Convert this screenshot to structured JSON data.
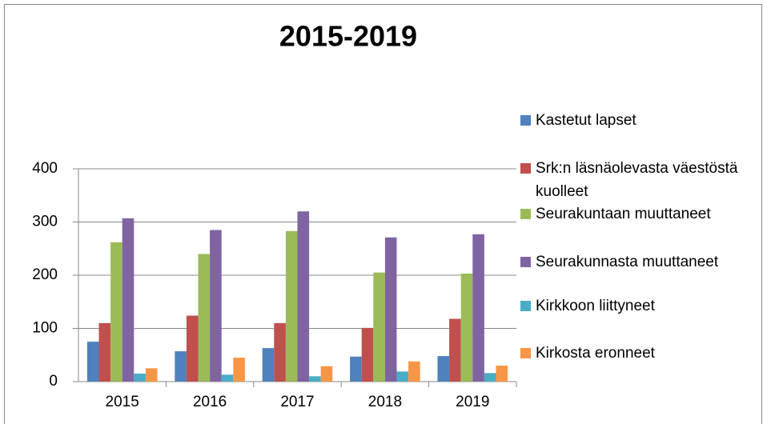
{
  "chart_data": {
    "type": "bar",
    "title": "2015-2019",
    "categories": [
      "2015",
      "2016",
      "2017",
      "2018",
      "2019"
    ],
    "series": [
      {
        "name": "Kastetut lapset",
        "color": "#4f81bd",
        "values": [
          75,
          57,
          63,
          47,
          48
        ]
      },
      {
        "name": "Srk:n läsnäolevasta väestöstä kuolleet",
        "color": "#c0504d",
        "values": [
          110,
          124,
          110,
          101,
          118
        ]
      },
      {
        "name": "Seurakuntaan muuttaneet",
        "color": "#9bbb59",
        "values": [
          262,
          240,
          283,
          205,
          203
        ]
      },
      {
        "name": "Seurakunnasta muuttaneet",
        "color": "#8064a2",
        "values": [
          307,
          285,
          320,
          271,
          277
        ]
      },
      {
        "name": "Kirkkoon liittyneet",
        "color": "#4bacc6",
        "values": [
          15,
          13,
          10,
          19,
          16
        ]
      },
      {
        "name": "Kirkosta eronneet",
        "color": "#f79646",
        "values": [
          25,
          45,
          29,
          38,
          30
        ]
      }
    ],
    "ylim": [
      0,
      400
    ],
    "yticks": [
      0,
      100,
      200,
      300,
      400
    ],
    "grid": true,
    "legend": "right"
  }
}
